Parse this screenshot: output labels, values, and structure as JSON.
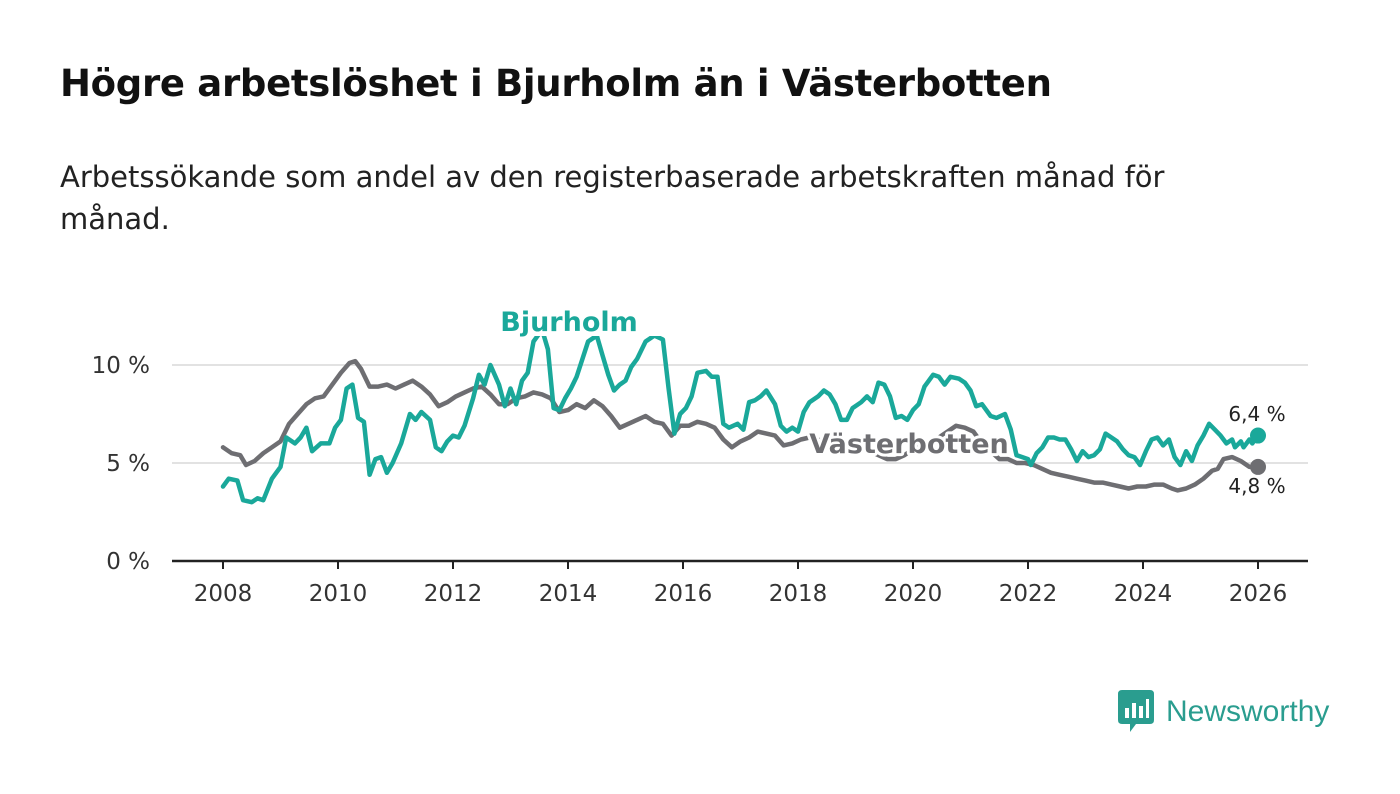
{
  "title": "Högre arbetslöshet i Bjurholm än i Västerbotten",
  "subtitle": "Arbetssökande som andel av den registerbaserade arbetskraften månad för månad.",
  "brand": {
    "name": "Newsworthy",
    "icon": "newsworthy-logo-icon"
  },
  "colors": {
    "bjurholm": "#1aa89a",
    "vasterbotten": "#6e6e72",
    "grid": "#d9d9d9",
    "axis": "#222222"
  },
  "chart_data": {
    "type": "line",
    "title": "Högre arbetslöshet i Bjurholm än i Västerbotten",
    "xlabel": "",
    "ylabel": "",
    "xlim": [
      2008,
      2026
    ],
    "ylim": [
      0,
      10
    ],
    "yticks": [
      0,
      5,
      10
    ],
    "ytick_labels": [
      "0 %",
      "5 %",
      "10 %"
    ],
    "xticks": [
      2008,
      2010,
      2012,
      2014,
      2016,
      2018,
      2020,
      2022,
      2024,
      2026
    ],
    "xtick_labels": [
      "2008",
      "2010",
      "2012",
      "2014",
      "2016",
      "2018",
      "2020",
      "2022",
      "2024",
      "2026"
    ],
    "series": [
      {
        "name": "Bjurholm",
        "points": [
          [
            2008.0,
            3.8
          ],
          [
            2008.1,
            4.2
          ],
          [
            2008.25,
            4.1
          ],
          [
            2008.35,
            3.1
          ],
          [
            2008.5,
            3.0
          ],
          [
            2008.6,
            3.2
          ],
          [
            2008.7,
            3.1
          ],
          [
            2008.85,
            4.2
          ],
          [
            2009.0,
            4.8
          ],
          [
            2009.1,
            6.3
          ],
          [
            2009.25,
            6.0
          ],
          [
            2009.35,
            6.3
          ],
          [
            2009.45,
            6.8
          ],
          [
            2009.55,
            5.6
          ],
          [
            2009.7,
            6.0
          ],
          [
            2009.85,
            6.0
          ],
          [
            2009.95,
            6.8
          ],
          [
            2010.05,
            7.2
          ],
          [
            2010.15,
            8.8
          ],
          [
            2010.25,
            9.0
          ],
          [
            2010.35,
            7.3
          ],
          [
            2010.45,
            7.1
          ],
          [
            2010.55,
            4.4
          ],
          [
            2010.65,
            5.2
          ],
          [
            2010.75,
            5.3
          ],
          [
            2010.85,
            4.5
          ],
          [
            2010.95,
            5.0
          ],
          [
            2011.1,
            6.0
          ],
          [
            2011.25,
            7.5
          ],
          [
            2011.35,
            7.2
          ],
          [
            2011.45,
            7.6
          ],
          [
            2011.6,
            7.2
          ],
          [
            2011.7,
            5.8
          ],
          [
            2011.8,
            5.6
          ],
          [
            2011.9,
            6.1
          ],
          [
            2012.0,
            6.4
          ],
          [
            2012.1,
            6.3
          ],
          [
            2012.2,
            6.9
          ],
          [
            2012.35,
            8.3
          ],
          [
            2012.45,
            9.5
          ],
          [
            2012.55,
            9.0
          ],
          [
            2012.65,
            10.0
          ],
          [
            2012.8,
            9.0
          ],
          [
            2012.9,
            7.9
          ],
          [
            2013.0,
            8.8
          ],
          [
            2013.1,
            8.0
          ],
          [
            2013.2,
            9.2
          ],
          [
            2013.3,
            9.6
          ],
          [
            2013.4,
            11.2
          ],
          [
            2013.55,
            11.8
          ],
          [
            2013.65,
            10.8
          ],
          [
            2013.75,
            7.8
          ],
          [
            2013.85,
            7.7
          ],
          [
            2013.95,
            8.3
          ],
          [
            2014.05,
            8.8
          ],
          [
            2014.15,
            9.4
          ],
          [
            2014.25,
            10.3
          ],
          [
            2014.35,
            11.2
          ],
          [
            2014.5,
            11.5
          ],
          [
            2014.6,
            10.5
          ],
          [
            2014.7,
            9.5
          ],
          [
            2014.8,
            8.7
          ],
          [
            2014.9,
            9.0
          ],
          [
            2015.0,
            9.2
          ],
          [
            2015.1,
            9.9
          ],
          [
            2015.2,
            10.3
          ],
          [
            2015.35,
            11.2
          ],
          [
            2015.5,
            11.5
          ],
          [
            2015.65,
            11.3
          ],
          [
            2015.75,
            8.8
          ],
          [
            2015.85,
            6.5
          ],
          [
            2015.95,
            7.5
          ],
          [
            2016.05,
            7.8
          ],
          [
            2016.15,
            8.4
          ],
          [
            2016.25,
            9.6
          ],
          [
            2016.4,
            9.7
          ],
          [
            2016.5,
            9.4
          ],
          [
            2016.6,
            9.4
          ],
          [
            2016.7,
            7.0
          ],
          [
            2016.8,
            6.8
          ],
          [
            2016.95,
            7.0
          ],
          [
            2017.05,
            6.7
          ],
          [
            2017.15,
            8.1
          ],
          [
            2017.25,
            8.2
          ],
          [
            2017.35,
            8.4
          ],
          [
            2017.45,
            8.7
          ],
          [
            2017.6,
            8.0
          ],
          [
            2017.7,
            6.9
          ],
          [
            2017.8,
            6.6
          ],
          [
            2017.9,
            6.8
          ],
          [
            2018.0,
            6.6
          ],
          [
            2018.1,
            7.6
          ],
          [
            2018.2,
            8.1
          ],
          [
            2018.35,
            8.4
          ],
          [
            2018.45,
            8.7
          ],
          [
            2018.55,
            8.5
          ],
          [
            2018.65,
            8.0
          ],
          [
            2018.75,
            7.2
          ],
          [
            2018.85,
            7.2
          ],
          [
            2018.95,
            7.8
          ],
          [
            2019.1,
            8.1
          ],
          [
            2019.2,
            8.4
          ],
          [
            2019.3,
            8.1
          ],
          [
            2019.4,
            9.1
          ],
          [
            2019.5,
            9.0
          ],
          [
            2019.6,
            8.4
          ],
          [
            2019.7,
            7.3
          ],
          [
            2019.8,
            7.4
          ],
          [
            2019.9,
            7.2
          ],
          [
            2020.0,
            7.7
          ],
          [
            2020.1,
            8.0
          ],
          [
            2020.2,
            8.9
          ],
          [
            2020.35,
            9.5
          ],
          [
            2020.45,
            9.4
          ],
          [
            2020.55,
            9.0
          ],
          [
            2020.65,
            9.4
          ],
          [
            2020.8,
            9.3
          ],
          [
            2020.9,
            9.1
          ],
          [
            2021.0,
            8.7
          ],
          [
            2021.1,
            7.9
          ],
          [
            2021.2,
            8.0
          ],
          [
            2021.35,
            7.4
          ],
          [
            2021.45,
            7.3
          ],
          [
            2021.6,
            7.5
          ],
          [
            2021.7,
            6.7
          ],
          [
            2021.8,
            5.4
          ],
          [
            2021.9,
            5.3
          ],
          [
            2022.0,
            5.2
          ],
          [
            2022.05,
            4.9
          ],
          [
            2022.15,
            5.5
          ],
          [
            2022.25,
            5.8
          ],
          [
            2022.35,
            6.3
          ],
          [
            2022.45,
            6.3
          ],
          [
            2022.55,
            6.2
          ],
          [
            2022.65,
            6.2
          ],
          [
            2022.75,
            5.7
          ],
          [
            2022.85,
            5.1
          ],
          [
            2022.95,
            5.6
          ],
          [
            2023.05,
            5.3
          ],
          [
            2023.15,
            5.4
          ],
          [
            2023.25,
            5.7
          ],
          [
            2023.35,
            6.5
          ],
          [
            2023.45,
            6.3
          ],
          [
            2023.55,
            6.1
          ],
          [
            2023.65,
            5.7
          ],
          [
            2023.75,
            5.4
          ],
          [
            2023.85,
            5.3
          ],
          [
            2023.95,
            4.9
          ],
          [
            2024.05,
            5.6
          ],
          [
            2024.15,
            6.2
          ],
          [
            2024.25,
            6.3
          ],
          [
            2024.35,
            5.9
          ],
          [
            2024.45,
            6.2
          ],
          [
            2024.55,
            5.3
          ],
          [
            2024.65,
            4.9
          ],
          [
            2024.75,
            5.6
          ],
          [
            2024.85,
            5.1
          ],
          [
            2024.95,
            5.9
          ],
          [
            2025.05,
            6.4
          ],
          [
            2025.15,
            7.0
          ],
          [
            2025.25,
            6.7
          ],
          [
            2025.35,
            6.4
          ],
          [
            2025.45,
            6.0
          ],
          [
            2025.55,
            6.2
          ],
          [
            2025.6,
            5.8
          ],
          [
            2025.7,
            6.1
          ],
          [
            2025.75,
            5.8
          ],
          [
            2025.85,
            6.2
          ],
          [
            2025.9,
            6.0
          ],
          [
            2026.0,
            6.4
          ]
        ]
      },
      {
        "name": "Västerbotten",
        "points": [
          [
            2008.0,
            5.8
          ],
          [
            2008.15,
            5.5
          ],
          [
            2008.3,
            5.4
          ],
          [
            2008.4,
            4.9
          ],
          [
            2008.55,
            5.1
          ],
          [
            2008.7,
            5.5
          ],
          [
            2008.85,
            5.8
          ],
          [
            2009.0,
            6.1
          ],
          [
            2009.15,
            7.0
          ],
          [
            2009.3,
            7.5
          ],
          [
            2009.45,
            8.0
          ],
          [
            2009.6,
            8.3
          ],
          [
            2009.75,
            8.4
          ],
          [
            2009.9,
            9.0
          ],
          [
            2010.05,
            9.6
          ],
          [
            2010.2,
            10.1
          ],
          [
            2010.3,
            10.2
          ],
          [
            2010.4,
            9.8
          ],
          [
            2010.55,
            8.9
          ],
          [
            2010.7,
            8.9
          ],
          [
            2010.85,
            9.0
          ],
          [
            2011.0,
            8.8
          ],
          [
            2011.15,
            9.0
          ],
          [
            2011.3,
            9.2
          ],
          [
            2011.45,
            8.9
          ],
          [
            2011.6,
            8.5
          ],
          [
            2011.75,
            7.9
          ],
          [
            2011.9,
            8.1
          ],
          [
            2012.05,
            8.4
          ],
          [
            2012.2,
            8.6
          ],
          [
            2012.35,
            8.8
          ],
          [
            2012.5,
            8.9
          ],
          [
            2012.65,
            8.5
          ],
          [
            2012.8,
            8.0
          ],
          [
            2012.95,
            8.0
          ],
          [
            2013.1,
            8.3
          ],
          [
            2013.25,
            8.4
          ],
          [
            2013.4,
            8.6
          ],
          [
            2013.55,
            8.5
          ],
          [
            2013.7,
            8.3
          ],
          [
            2013.85,
            7.6
          ],
          [
            2014.0,
            7.7
          ],
          [
            2014.15,
            8.0
          ],
          [
            2014.3,
            7.8
          ],
          [
            2014.45,
            8.2
          ],
          [
            2014.6,
            7.9
          ],
          [
            2014.75,
            7.4
          ],
          [
            2014.9,
            6.8
          ],
          [
            2015.05,
            7.0
          ],
          [
            2015.2,
            7.2
          ],
          [
            2015.35,
            7.4
          ],
          [
            2015.5,
            7.1
          ],
          [
            2015.65,
            7.0
          ],
          [
            2015.8,
            6.4
          ],
          [
            2015.95,
            6.9
          ],
          [
            2016.1,
            6.9
          ],
          [
            2016.25,
            7.1
          ],
          [
            2016.4,
            7.0
          ],
          [
            2016.55,
            6.8
          ],
          [
            2016.7,
            6.2
          ],
          [
            2016.85,
            5.8
          ],
          [
            2017.0,
            6.1
          ],
          [
            2017.15,
            6.3
          ],
          [
            2017.3,
            6.6
          ],
          [
            2017.45,
            6.5
          ],
          [
            2017.6,
            6.4
          ],
          [
            2017.75,
            5.9
          ],
          [
            2017.9,
            6.0
          ],
          [
            2018.05,
            6.2
          ],
          [
            2018.2,
            6.3
          ],
          [
            2018.35,
            6.2
          ],
          [
            2018.5,
            6.0
          ],
          [
            2018.65,
            5.7
          ],
          [
            2018.8,
            5.6
          ],
          [
            2018.95,
            5.7
          ],
          [
            2019.1,
            5.8
          ],
          [
            2019.25,
            5.6
          ],
          [
            2019.4,
            5.4
          ],
          [
            2019.55,
            5.2
          ],
          [
            2019.7,
            5.2
          ],
          [
            2019.85,
            5.4
          ],
          [
            2020.0,
            5.7
          ],
          [
            2020.15,
            5.9
          ],
          [
            2020.3,
            6.0
          ],
          [
            2020.45,
            6.3
          ],
          [
            2020.6,
            6.6
          ],
          [
            2020.75,
            6.9
          ],
          [
            2020.9,
            6.8
          ],
          [
            2021.05,
            6.6
          ],
          [
            2021.2,
            6.0
          ],
          [
            2021.35,
            5.6
          ],
          [
            2021.5,
            5.2
          ],
          [
            2021.65,
            5.2
          ],
          [
            2021.8,
            5.0
          ],
          [
            2021.95,
            5.0
          ],
          [
            2022.1,
            4.9
          ],
          [
            2022.25,
            4.7
          ],
          [
            2022.4,
            4.5
          ],
          [
            2022.55,
            4.4
          ],
          [
            2022.7,
            4.3
          ],
          [
            2022.85,
            4.2
          ],
          [
            2023.0,
            4.1
          ],
          [
            2023.15,
            4.0
          ],
          [
            2023.3,
            4.0
          ],
          [
            2023.45,
            3.9
          ],
          [
            2023.6,
            3.8
          ],
          [
            2023.75,
            3.7
          ],
          [
            2023.9,
            3.8
          ],
          [
            2024.05,
            3.8
          ],
          [
            2024.2,
            3.9
          ],
          [
            2024.35,
            3.9
          ],
          [
            2024.5,
            3.7
          ],
          [
            2024.6,
            3.6
          ],
          [
            2024.75,
            3.7
          ],
          [
            2024.9,
            3.9
          ],
          [
            2025.05,
            4.2
          ],
          [
            2025.2,
            4.6
          ],
          [
            2025.3,
            4.7
          ],
          [
            2025.4,
            5.2
          ],
          [
            2025.55,
            5.3
          ],
          [
            2025.7,
            5.1
          ],
          [
            2025.85,
            4.8
          ],
          [
            2026.0,
            4.8
          ]
        ]
      }
    ],
    "annotations": [
      {
        "text": "Bjurholm",
        "series": "Bjurholm"
      },
      {
        "text": "Västerbotten",
        "series": "Västerbotten"
      },
      {
        "text": "6,4 %",
        "series": "Bjurholm",
        "x": 2026.0,
        "y": 6.4
      },
      {
        "text": "4,8 %",
        "series": "Västerbotten",
        "x": 2026.0,
        "y": 4.8
      }
    ]
  }
}
